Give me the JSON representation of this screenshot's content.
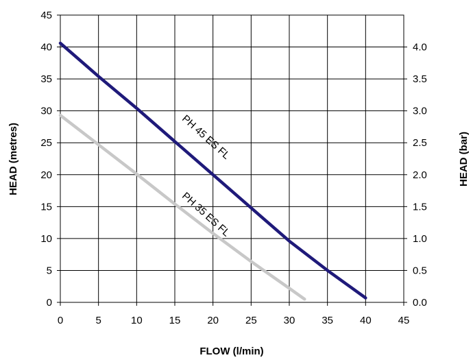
{
  "chart_data": {
    "type": "line",
    "xlabel": "FLOW (l/min)",
    "ylabel": "HEAD (metres)",
    "y2label": "HEAD (bar)",
    "xlim": [
      0,
      45
    ],
    "ylim": [
      0,
      45
    ],
    "y2lim": [
      0,
      4.5
    ],
    "xticks": [
      "0",
      "5",
      "10",
      "15",
      "20",
      "25",
      "30",
      "35",
      "40",
      "45"
    ],
    "yticks": [
      "0",
      "5",
      "10",
      "15",
      "20",
      "25",
      "30",
      "35",
      "40",
      "45"
    ],
    "y2ticks": [
      "0.0",
      "0.5",
      "1.0",
      "1.5",
      "2.0",
      "2.5",
      "3.0",
      "3.5",
      "4.0"
    ],
    "grid": true,
    "legend": "none",
    "series": [
      {
        "name": "PH 45 ES FL",
        "color": "#1f1a7a",
        "x": [
          0,
          5,
          10,
          15,
          20,
          25,
          30,
          35,
          40
        ],
        "y": [
          40.6,
          35.4,
          30.4,
          25.2,
          20.0,
          14.8,
          9.6,
          5.0,
          0.7
        ]
      },
      {
        "name": "PH 35 ES FL",
        "color": "#c8c8c8",
        "x": [
          0,
          5,
          10,
          15,
          20,
          25,
          30,
          32
        ],
        "y": [
          29.3,
          24.7,
          20.1,
          15.4,
          10.8,
          6.4,
          2.2,
          0.5
        ]
      }
    ]
  }
}
